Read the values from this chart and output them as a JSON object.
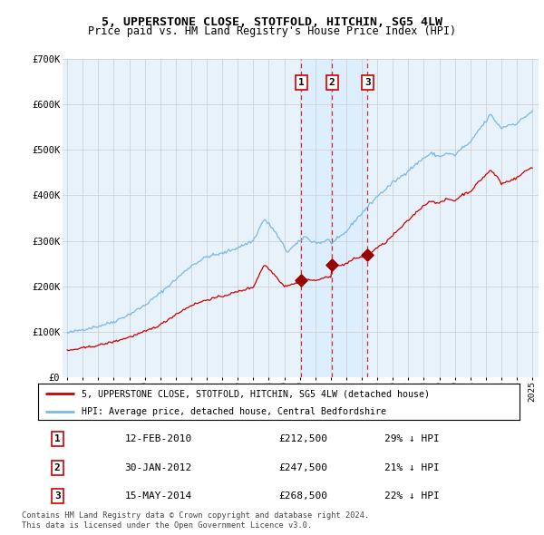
{
  "title": "5, UPPERSTONE CLOSE, STOTFOLD, HITCHIN, SG5 4LW",
  "subtitle": "Price paid vs. HM Land Registry's House Price Index (HPI)",
  "legend_line1": "5, UPPERSTONE CLOSE, STOTFOLD, HITCHIN, SG5 4LW (detached house)",
  "legend_line2": "HPI: Average price, detached house, Central Bedfordshire",
  "footer1": "Contains HM Land Registry data © Crown copyright and database right 2024.",
  "footer2": "This data is licensed under the Open Government Licence v3.0.",
  "transactions": [
    {
      "label": "1",
      "date": "12-FEB-2010",
      "price": 212500,
      "hpi_diff": "29% ↓ HPI"
    },
    {
      "label": "2",
      "date": "30-JAN-2012",
      "price": 247500,
      "hpi_diff": "21% ↓ HPI"
    },
    {
      "label": "3",
      "date": "15-MAY-2014",
      "price": 268500,
      "hpi_diff": "22% ↓ HPI"
    }
  ],
  "trans_dates": [
    2010.1,
    2012.08,
    2014.37
  ],
  "trans_prices": [
    212500,
    247500,
    268500
  ],
  "hpi_line_color": "#7ab8e8",
  "price_line_color": "#cc0000",
  "dot_color": "#990000",
  "vline_color": "#cc3333",
  "shade_color": "#ddeeff",
  "chart_bg_color": "#e8f2fb",
  "background_color": "#ffffff",
  "grid_color": "#cccccc",
  "ylim": [
    0,
    700000
  ],
  "yticks": [
    0,
    100000,
    200000,
    300000,
    400000,
    500000,
    600000,
    700000
  ],
  "ytick_labels": [
    "£0",
    "£100K",
    "£200K",
    "£300K",
    "£400K",
    "£500K",
    "£600K",
    "£700K"
  ],
  "xstart_year": 1995,
  "xend_year": 2025
}
